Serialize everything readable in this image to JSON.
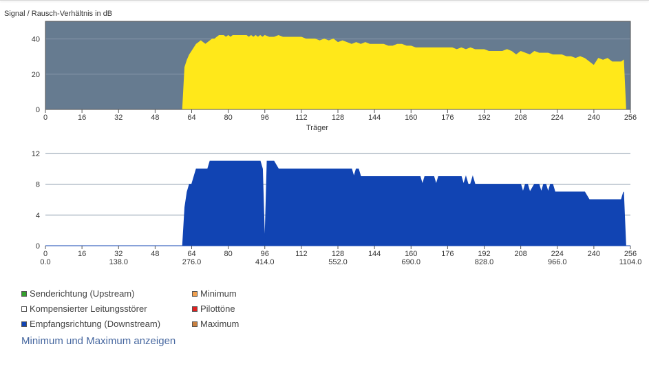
{
  "chart_data": [
    {
      "type": "area",
      "title": "Signal / Rausch-Verhältnis in dB",
      "xlabel": "Träger",
      "ylabel": "",
      "xlim": [
        0,
        256
      ],
      "ylim": [
        0,
        50
      ],
      "x_ticks": [
        0,
        16,
        32,
        48,
        64,
        80,
        96,
        112,
        128,
        144,
        160,
        176,
        192,
        208,
        224,
        240,
        256
      ],
      "y_ticks": [
        0,
        20,
        40
      ],
      "grid": "horizontal",
      "colors": {
        "plot_background": "#667b90",
        "fill": "#ffe81a",
        "gridline": "#8898aa"
      },
      "x": [
        0,
        60,
        61,
        62,
        63,
        64,
        65,
        66,
        67,
        68,
        69,
        70,
        71,
        72,
        73,
        74,
        75,
        76,
        77,
        78,
        79,
        80,
        81,
        82,
        83,
        84,
        85,
        86,
        87,
        88,
        89,
        90,
        91,
        92,
        93,
        94,
        95,
        96,
        98,
        100,
        102,
        104,
        106,
        108,
        110,
        112,
        114,
        116,
        118,
        120,
        122,
        124,
        126,
        128,
        130,
        132,
        134,
        136,
        138,
        140,
        142,
        144,
        146,
        148,
        150,
        152,
        154,
        156,
        158,
        160,
        162,
        164,
        166,
        168,
        170,
        172,
        174,
        176,
        178,
        180,
        182,
        184,
        186,
        188,
        190,
        192,
        194,
        196,
        198,
        200,
        202,
        204,
        206,
        208,
        210,
        212,
        214,
        216,
        218,
        220,
        222,
        224,
        226,
        228,
        230,
        232,
        234,
        236,
        238,
        240,
        242,
        244,
        246,
        248,
        250,
        252,
        253,
        254,
        255,
        256
      ],
      "values": [
        0,
        0,
        24,
        28,
        31,
        33,
        35,
        37,
        38,
        39,
        38,
        37,
        38,
        39,
        40,
        40,
        41,
        42,
        42,
        42,
        41,
        42,
        41,
        42,
        42,
        42,
        42,
        42,
        42,
        42,
        41,
        42,
        41,
        42,
        41,
        42,
        41,
        42,
        41,
        41,
        42,
        41,
        41,
        41,
        41,
        41,
        40,
        40,
        40,
        39,
        40,
        39,
        40,
        38,
        39,
        38,
        37,
        38,
        37,
        38,
        37,
        37,
        37,
        37,
        36,
        36,
        37,
        37,
        36,
        36,
        35,
        35,
        35,
        35,
        35,
        35,
        35,
        35,
        35,
        34,
        35,
        34,
        35,
        34,
        34,
        34,
        33,
        33,
        33,
        33,
        34,
        33,
        31,
        33,
        32,
        31,
        33,
        32,
        32,
        32,
        31,
        31,
        31,
        30,
        30,
        29,
        30,
        29,
        27,
        25,
        29,
        28,
        29,
        27,
        27,
        27,
        28,
        0,
        0,
        0
      ]
    },
    {
      "type": "area",
      "title": "",
      "xlabel": "",
      "ylabel": "",
      "xlim": [
        0,
        256
      ],
      "ylim": [
        0,
        12
      ],
      "x_ticks": [
        0,
        16,
        32,
        48,
        64,
        80,
        96,
        112,
        128,
        144,
        160,
        176,
        192,
        208,
        224,
        240,
        256
      ],
      "secondary_x_labels": [
        "0.0",
        "138.0",
        "276.0",
        "414.0",
        "552.0",
        "690.0",
        "828.0",
        "966.0",
        "1104.0"
      ],
      "y_ticks": [
        0,
        4,
        8,
        12
      ],
      "grid": "horizontal",
      "colors": {
        "plot_background": "#ffffff",
        "fill": "#1144b3",
        "gridline": "#8898aa"
      },
      "x": [
        0,
        60,
        61,
        62,
        63,
        64,
        65,
        66,
        67,
        68,
        70,
        71,
        72,
        73,
        74,
        75,
        76,
        78,
        80,
        82,
        84,
        86,
        88,
        90,
        92,
        94,
        95,
        96,
        97,
        98,
        100,
        102,
        104,
        106,
        108,
        110,
        112,
        114,
        116,
        118,
        120,
        122,
        124,
        126,
        128,
        130,
        132,
        134,
        135,
        136,
        137,
        138,
        140,
        142,
        144,
        146,
        148,
        150,
        152,
        154,
        156,
        158,
        160,
        162,
        164,
        165,
        166,
        168,
        170,
        171,
        172,
        174,
        176,
        178,
        180,
        182,
        183,
        184,
        185,
        186,
        187,
        188,
        190,
        192,
        194,
        196,
        198,
        200,
        202,
        204,
        206,
        208,
        209,
        210,
        211,
        212,
        214,
        216,
        217,
        218,
        219,
        220,
        221,
        222,
        223,
        224,
        226,
        228,
        230,
        232,
        234,
        236,
        238,
        240,
        242,
        244,
        246,
        248,
        250,
        252,
        253,
        254,
        255,
        256
      ],
      "values": [
        0,
        0,
        5,
        7,
        8,
        8,
        9,
        10,
        10,
        10,
        10,
        10,
        11,
        11,
        11,
        11,
        11,
        11,
        11,
        11,
        11,
        11,
        11,
        11,
        11,
        11,
        10,
        0,
        11,
        11,
        11,
        10,
        10,
        10,
        10,
        10,
        10,
        10,
        10,
        10,
        10,
        10,
        10,
        10,
        10,
        10,
        10,
        10,
        9,
        10,
        10,
        9,
        9,
        9,
        9,
        9,
        9,
        9,
        9,
        9,
        9,
        9,
        9,
        9,
        9,
        8,
        9,
        9,
        9,
        8,
        9,
        9,
        9,
        9,
        9,
        9,
        8,
        9,
        8,
        8,
        9,
        8,
        8,
        8,
        8,
        8,
        8,
        8,
        8,
        8,
        8,
        8,
        7,
        8,
        8,
        7,
        8,
        8,
        7,
        8,
        8,
        7,
        8,
        8,
        7,
        7,
        7,
        7,
        7,
        7,
        7,
        7,
        6,
        6,
        6,
        6,
        6,
        6,
        6,
        6,
        7,
        0,
        0,
        0
      ]
    }
  ],
  "legend": {
    "items": [
      {
        "label": "Senderichtung (Upstream)",
        "color": "#33a02c"
      },
      {
        "label": "Minimum",
        "color": "#f0a050"
      },
      {
        "label": "Kompensierter Leitungsstörer",
        "color": "#ffffff"
      },
      {
        "label": "Pilottöne",
        "color": "#e02020"
      },
      {
        "label": "Empfangsrichtung (Downstream)",
        "color": "#1144b3"
      },
      {
        "label": "Maximum",
        "color": "#c88040"
      }
    ]
  },
  "toggle_link": "Minimum und Maximum anzeigen"
}
